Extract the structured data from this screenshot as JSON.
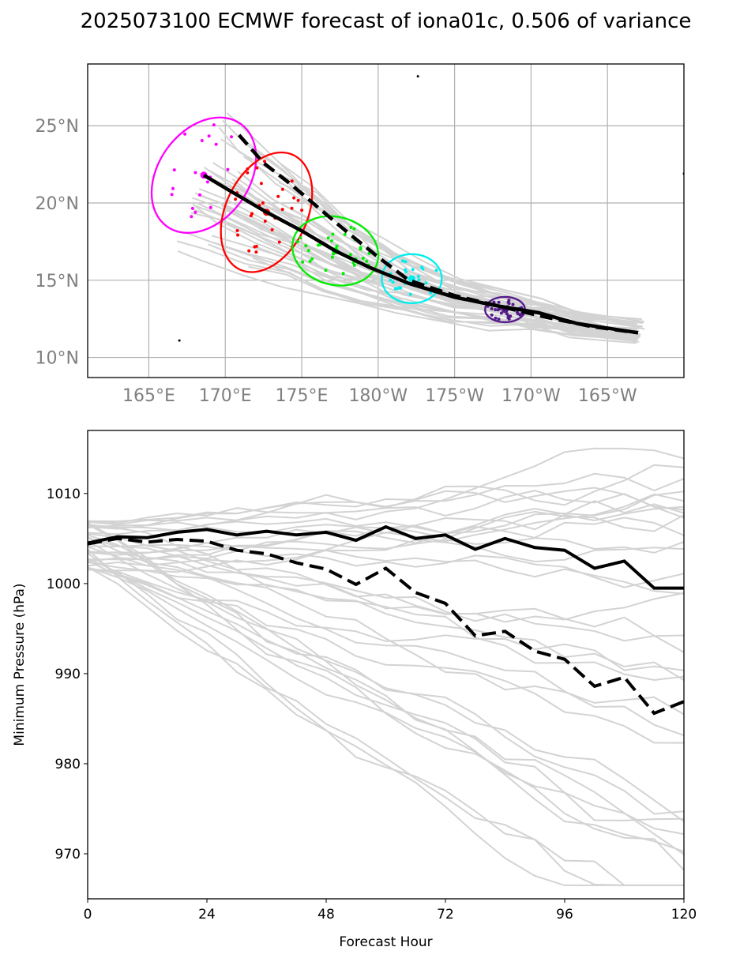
{
  "title": "2025073100 ECMWF forecast of iona01c, 0.506 of variance",
  "colors": {
    "ensemble": "#d3d3d3",
    "mean": "#000000",
    "clusters": [
      "#ff00ff",
      "#ff0000",
      "#00ee00",
      "#00eeee",
      "#551a8b"
    ],
    "grid": "#b0b0b0"
  },
  "chart_data": [
    {
      "type": "scatter",
      "subtype": "track-map",
      "lon_ticks": [
        "165°E",
        "170°E",
        "175°E",
        "180°W",
        "175°W",
        "170°W",
        "165°W"
      ],
      "lat_ticks": [
        "10°N",
        "15°N",
        "20°N",
        "25°N"
      ],
      "xlim": [
        161,
        200
      ],
      "ylim": [
        8.7,
        29
      ],
      "grid": true,
      "mean_track": [
        [
          168.6,
          21.8
        ],
        [
          170.3,
          20.8
        ],
        [
          172.7,
          19.4
        ],
        [
          175,
          18.2
        ],
        [
          177.2,
          16.9
        ],
        [
          179.5,
          15.8
        ],
        [
          182,
          14.8
        ],
        [
          185,
          13.9
        ],
        [
          188,
          13.3
        ],
        [
          190.5,
          12.9
        ],
        [
          193,
          12.2
        ],
        [
          197,
          11.6
        ]
      ],
      "dashed_track": [
        [
          170.9,
          24.4
        ],
        [
          172.5,
          22.6
        ],
        [
          174.3,
          21.2
        ],
        [
          176.2,
          19.6
        ],
        [
          178,
          18.1
        ],
        [
          180,
          16.5
        ],
        [
          182,
          15
        ],
        [
          185,
          14
        ],
        [
          188,
          13.3
        ],
        [
          191,
          12.6
        ],
        [
          194,
          12
        ],
        [
          197,
          11.6
        ]
      ],
      "cluster_centers": [
        [
          168.6,
          21.8
        ],
        [
          172.7,
          19.4
        ],
        [
          177.2,
          16.9
        ],
        [
          182.2,
          15.1
        ],
        [
          188.3,
          13.1
        ]
      ],
      "stray_points": [
        [
          182.6,
          28.2
        ],
        [
          167,
          11.1
        ],
        [
          200,
          21.9
        ]
      ]
    },
    {
      "type": "line",
      "xlabel": "Forecast Hour",
      "ylabel": "Minimum Pressure (hPa)",
      "xlim": [
        0,
        120
      ],
      "ylim": [
        965,
        1017
      ],
      "xticks": [
        "0",
        "24",
        "48",
        "72",
        "96",
        "120"
      ],
      "yticks": [
        "970",
        "980",
        "990",
        "1000",
        "1010"
      ],
      "x": [
        0,
        6,
        12,
        18,
        24,
        30,
        36,
        42,
        48,
        54,
        60,
        66,
        72,
        78,
        84,
        90,
        96,
        102,
        108,
        114,
        120
      ],
      "series": [
        {
          "style": "solid",
          "values": [
            1004.5,
            1005.2,
            1005.1,
            1005.7,
            1006,
            1005.4,
            1005.8,
            1005.4,
            1005.7,
            1004.8,
            1006.3,
            1005,
            1005.4,
            1003.8,
            1005,
            1004,
            1003.7,
            1001.7,
            1002.5,
            999.5,
            999.5
          ]
        },
        {
          "style": "dashed",
          "values": [
            1004.4,
            1005,
            1004.6,
            1004.9,
            1004.7,
            1003.7,
            1003.3,
            1002.3,
            1001.6,
            999.9,
            1001.7,
            999,
            997.8,
            994.2,
            994.7,
            992.5,
            991.6,
            988.6,
            989.6,
            985.6,
            986.9
          ]
        }
      ]
    }
  ]
}
